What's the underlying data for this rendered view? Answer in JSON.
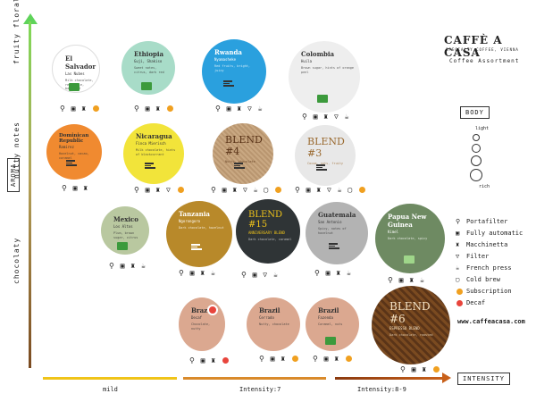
{
  "brand": {
    "name": "CAFFÈ A CASA",
    "tagline": "SPECIALTY COFFEE, VIENNA",
    "subtitle": "Coffee Assortment",
    "website": "www.caffeacasa.com"
  },
  "axes": {
    "y_title": "AROMA",
    "y_top": "fruity floral",
    "y_mid": "nutty notes",
    "y_bottom": "chocolaty",
    "x_title": "INTENSITY",
    "x_mild": "mild",
    "x_i7": "Intensity:7",
    "x_i89": "Intensity:8-9"
  },
  "body": {
    "title": "BODY",
    "light": "light",
    "rich": "rich"
  },
  "legend": [
    {
      "icon": "portafilter-icon",
      "glyph": "⚲",
      "label": "Portafilter"
    },
    {
      "icon": "fully-automatic-icon",
      "glyph": "▣",
      "label": "Fully automatic"
    },
    {
      "icon": "macchinetta-icon",
      "glyph": "♜",
      "label": "Macchinetta"
    },
    {
      "icon": "filter-icon",
      "glyph": "▽",
      "label": "Filter"
    },
    {
      "icon": "french-press-icon",
      "glyph": "☕",
      "label": "French press"
    },
    {
      "icon": "cold-brew-icon",
      "glyph": "▢",
      "label": "Cold brew"
    },
    {
      "icon": "subscription-icon",
      "glyph": "●",
      "label": "Subscription"
    },
    {
      "icon": "decaf-icon",
      "glyph": "◉",
      "label": "Decaf"
    }
  ],
  "coffees": [
    {
      "id": "el-salvador",
      "name": "El Salvador",
      "sub": "Las Nubes",
      "desc": "Milk chocolate, red apple, balanced",
      "color": "#ffffff",
      "text": "#333"
    },
    {
      "id": "ethiopia",
      "name": "Ethiopia",
      "sub": "Guji, Shakiso",
      "desc": "Sweet notes, citrus, dark red",
      "color": "#a8dcc8",
      "text": "#333"
    },
    {
      "id": "rwanda",
      "name": "Rwanda",
      "sub": "Nyamasheke",
      "desc": "Red fruits, bright, juicy",
      "color": "#2aa0de",
      "text": "#fff"
    },
    {
      "id": "colombia",
      "name": "Colombia",
      "sub": "Huila",
      "desc": "Brown sugar, hints of orange peel",
      "color": "#eeeeee",
      "text": "#333"
    },
    {
      "id": "dominican",
      "name": "Dominican Republic",
      "sub": "Ramirez",
      "desc": "Hazelnut, cacao, caramel",
      "color": "#f08a30",
      "text": "#333"
    },
    {
      "id": "nicaragua",
      "name": "Nicaragua",
      "sub": "Finca Mierisch",
      "desc": "Milk chocolate, hints of blackcurrant",
      "color": "#f2e43a",
      "text": "#333"
    },
    {
      "id": "blend4",
      "name": "BLEND #4",
      "sub": "",
      "desc": "Nutty, chocolate",
      "color": "striped",
      "text": "#5a3418"
    },
    {
      "id": "blend3",
      "name": "BLEND #3",
      "sub": "",
      "desc": "Cocoa, nuts, fruity",
      "color": "#e8e8e8",
      "text": "#9a6a30"
    },
    {
      "id": "mexico",
      "name": "Mexico",
      "sub": "Los Altos",
      "desc": "Plum, brown sugar, citrus",
      "color": "#b9c8a0",
      "text": "#333"
    },
    {
      "id": "tanzania",
      "name": "Tanzania",
      "sub": "Ngorongoro",
      "desc": "Dark chocolate, hazelnut",
      "color": "#b8892a",
      "text": "#fff"
    },
    {
      "id": "blend15",
      "name": "BLEND #15",
      "sub": "ANNIVERSARY BLEND",
      "desc": "Dark chocolate, caramel",
      "color": "#2f3436",
      "text": "#f0c419"
    },
    {
      "id": "guatemala",
      "name": "Guatemala",
      "sub": "San Antonio",
      "desc": "Spicy, notes of hazelnut",
      "color": "#b3b3b3",
      "text": "#333"
    },
    {
      "id": "papua",
      "name": "Papua New Guinea",
      "sub": "Kimel",
      "desc": "Dark chocolate, spicy",
      "color": "#6e8a62",
      "text": "#fff"
    },
    {
      "id": "brazil-decaf",
      "name": "Brazil",
      "sub": "Decaf",
      "desc": "Chocolate, nutty",
      "color": "#dba890",
      "text": "#333"
    },
    {
      "id": "brazil",
      "name": "Brazil",
      "sub": "Cerrado",
      "desc": "Nutty, chocolate",
      "color": "#dba890",
      "text": "#333"
    },
    {
      "id": "brazil2",
      "name": "Brazil",
      "sub": "Fazenda",
      "desc": "Caramel, nuts",
      "color": "#dba890",
      "text": "#333"
    },
    {
      "id": "blend6",
      "name": "BLEND #6",
      "sub": "ESPRESSO BLEND",
      "desc": "Dark chocolate, roasted",
      "color": "striped-dark",
      "text": "#f6e3c4"
    }
  ]
}
